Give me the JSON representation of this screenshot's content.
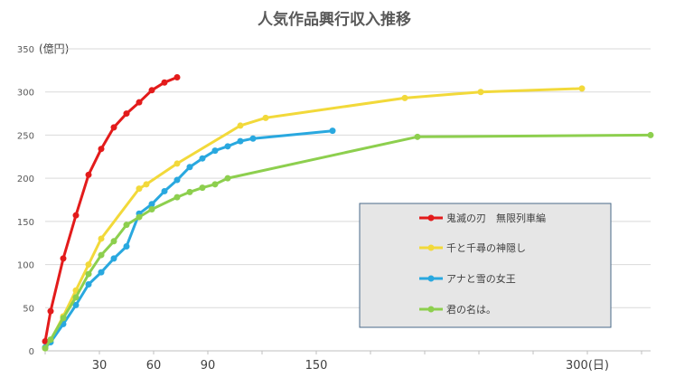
{
  "chart_data": {
    "type": "line",
    "title": "人気作品興行収入推移",
    "ylabel": "(億円)",
    "xlabel": "",
    "ylim": [
      0,
      350
    ],
    "xlim": [
      0,
      335
    ],
    "y_ticks": [
      0,
      50,
      100,
      150,
      200,
      250,
      300,
      350
    ],
    "x_ticks": [
      {
        "value": 30,
        "label": "30"
      },
      {
        "value": 60,
        "label": "60"
      },
      {
        "value": 90,
        "label": "90"
      },
      {
        "value": 150,
        "label": "150"
      },
      {
        "value": 300,
        "label": "300(日)"
      }
    ],
    "grid": true,
    "legend_position": "center-right",
    "series": [
      {
        "name": "鬼滅の刃　無限列車編",
        "color": "#e31b1b",
        "points": [
          [
            0,
            11
          ],
          [
            3,
            46
          ],
          [
            10,
            107
          ],
          [
            17,
            157
          ],
          [
            24,
            204
          ],
          [
            31,
            234
          ],
          [
            38,
            259
          ],
          [
            45,
            275
          ],
          [
            52,
            288
          ],
          [
            59,
            302
          ],
          [
            66,
            311
          ],
          [
            73,
            317
          ]
        ]
      },
      {
        "name": "千と千尋の神隠し",
        "color": "#f2d93a",
        "points": [
          [
            0,
            3
          ],
          [
            3,
            12
          ],
          [
            10,
            40
          ],
          [
            17,
            70
          ],
          [
            24,
            100
          ],
          [
            31,
            130
          ],
          [
            52,
            188
          ],
          [
            56,
            193
          ],
          [
            73,
            217
          ],
          [
            108,
            261
          ],
          [
            122,
            270
          ],
          [
            199,
            293
          ],
          [
            241,
            300
          ],
          [
            297,
            304
          ]
        ]
      },
      {
        "name": "アナと雪の女王",
        "color": "#29a8df",
        "points": [
          [
            0,
            4
          ],
          [
            3,
            10
          ],
          [
            10,
            31
          ],
          [
            17,
            53
          ],
          [
            24,
            77
          ],
          [
            31,
            91
          ],
          [
            38,
            107
          ],
          [
            45,
            121
          ],
          [
            52,
            159
          ],
          [
            59,
            170
          ],
          [
            66,
            185
          ],
          [
            73,
            198
          ],
          [
            80,
            213
          ],
          [
            87,
            223
          ],
          [
            94,
            232
          ],
          [
            101,
            237
          ],
          [
            108,
            243
          ],
          [
            115,
            246
          ],
          [
            159,
            255
          ]
        ]
      },
      {
        "name": "君の名は。",
        "color": "#8dcf4e",
        "points": [
          [
            0,
            3
          ],
          [
            3,
            13
          ],
          [
            10,
            38
          ],
          [
            17,
            62
          ],
          [
            24,
            89
          ],
          [
            31,
            111
          ],
          [
            38,
            127
          ],
          [
            45,
            146
          ],
          [
            52,
            155
          ],
          [
            59,
            164
          ],
          [
            73,
            178
          ],
          [
            80,
            184
          ],
          [
            87,
            189
          ],
          [
            94,
            193
          ],
          [
            101,
            200
          ],
          [
            206,
            248
          ],
          [
            335,
            250
          ]
        ]
      }
    ]
  }
}
